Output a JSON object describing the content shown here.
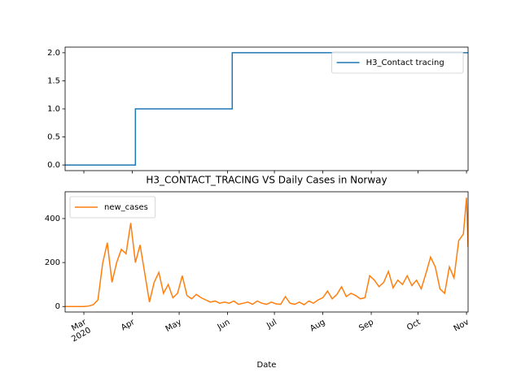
{
  "chart_data": [
    {
      "type": "line",
      "x": [
        -12,
        33,
        33,
        95,
        95,
        246
      ],
      "series": [
        {
          "name": "H3_Contact tracing",
          "color": "#1f77b4",
          "values": [
            0,
            0,
            1,
            1,
            2,
            2
          ]
        }
      ],
      "xlim": [
        -12,
        246
      ],
      "ylim": [
        -0.1,
        2.1
      ],
      "yticks": [
        {
          "value": 0,
          "label": "0.0"
        },
        {
          "value": 0.5,
          "label": "0.5"
        },
        {
          "value": 1,
          "label": "1.0"
        },
        {
          "value": 1.5,
          "label": "1.5"
        },
        {
          "value": 2,
          "label": "2.0"
        }
      ],
      "legend": "upper right"
    },
    {
      "type": "line",
      "title": "H3_CONTACT_TRACING VS Daily Cases in Norway",
      "xlabel": "Date",
      "x": [
        -12,
        -9,
        -6,
        -3,
        0,
        3,
        6,
        9,
        12,
        15,
        18,
        21,
        24,
        27,
        30,
        33,
        36,
        39,
        42,
        45,
        48,
        51,
        54,
        57,
        60,
        63,
        66,
        69,
        72,
        75,
        78,
        81,
        84,
        87,
        90,
        93,
        96,
        99,
        102,
        105,
        108,
        111,
        114,
        117,
        120,
        123,
        126,
        129,
        132,
        135,
        138,
        141,
        144,
        147,
        150,
        153,
        156,
        159,
        162,
        165,
        168,
        171,
        174,
        177,
        180,
        183,
        186,
        189,
        192,
        195,
        198,
        201,
        204,
        207,
        210,
        213,
        216,
        219,
        222,
        225,
        228,
        231,
        234,
        237,
        240,
        243,
        245,
        246
      ],
      "series": [
        {
          "name": "new_cases",
          "color": "#ff7f0e",
          "values": [
            0,
            0,
            0,
            0,
            0,
            2,
            8,
            30,
            195,
            290,
            110,
            200,
            260,
            240,
            380,
            200,
            280,
            150,
            20,
            110,
            155,
            60,
            100,
            40,
            60,
            140,
            50,
            35,
            55,
            40,
            30,
            20,
            25,
            15,
            20,
            15,
            25,
            10,
            15,
            20,
            10,
            25,
            15,
            10,
            20,
            12,
            10,
            45,
            15,
            10,
            20,
            8,
            25,
            15,
            30,
            40,
            70,
            35,
            55,
            90,
            45,
            60,
            50,
            35,
            40,
            140,
            120,
            90,
            110,
            160,
            85,
            120,
            100,
            140,
            95,
            120,
            80,
            150,
            225,
            180,
            80,
            60,
            180,
            130,
            300,
            330,
            495,
            270
          ]
        }
      ],
      "xlim": [
        -12,
        246
      ],
      "xticks": [
        {
          "value": 0,
          "label": "Mar\n2020"
        },
        {
          "value": 31,
          "label": "Apr"
        },
        {
          "value": 61,
          "label": "May"
        },
        {
          "value": 92,
          "label": "Jun"
        },
        {
          "value": 122,
          "label": "Jul"
        },
        {
          "value": 153,
          "label": "Aug"
        },
        {
          "value": 184,
          "label": "Sep"
        },
        {
          "value": 214,
          "label": "Oct"
        },
        {
          "value": 245,
          "label": "Nov"
        }
      ],
      "ylim": [
        -25,
        522
      ],
      "yticks": [
        0,
        200,
        400
      ],
      "legend": "upper left"
    }
  ]
}
